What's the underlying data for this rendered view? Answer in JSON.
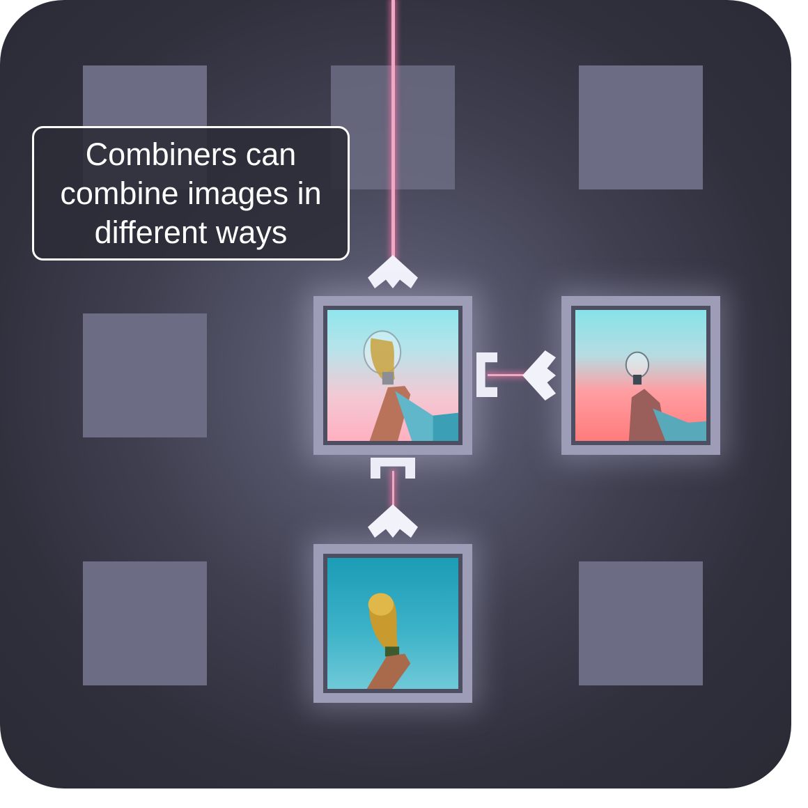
{
  "tooltip": {
    "text": "Combiners can combine images in different ways"
  },
  "colors": {
    "board_bg": "#3a3a4a",
    "empty_slot": "#6c6c84",
    "frame": "#9d9db7",
    "beam": "#f0a8c4",
    "text": "#ffffff"
  },
  "tiles": {
    "combined": {
      "image": "hand-holding-trophy-and-lightbulb-over-pastel-sky"
    },
    "bulb": {
      "image": "hand-holding-lightbulb-over-coral-sky"
    },
    "trophy": {
      "image": "hand-holding-golden-trophy-over-blue-sky"
    }
  },
  "icons": [
    "chevron-up-icon",
    "chevron-left-icon",
    "combiner-port-icon"
  ]
}
